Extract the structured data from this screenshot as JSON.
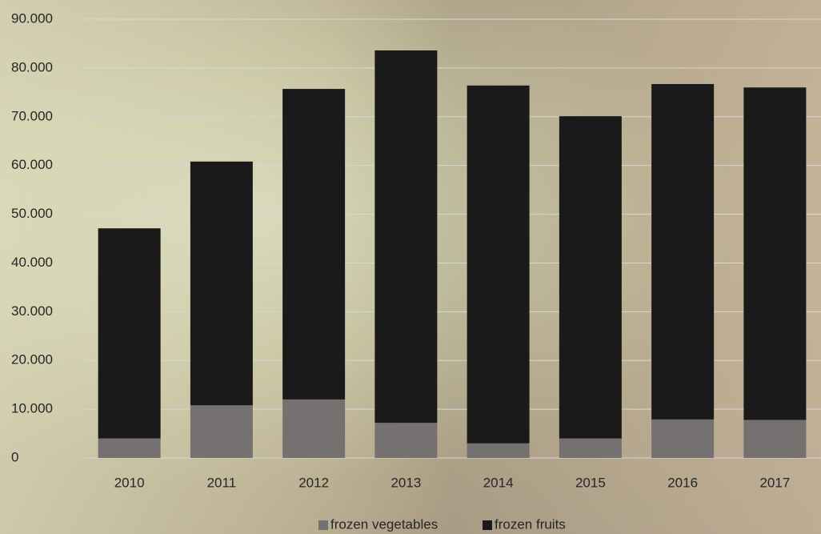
{
  "chart_data": {
    "type": "stacked-bar",
    "categories": [
      "2010",
      "2011",
      "2012",
      "2013",
      "2014",
      "2015",
      "2016",
      "2017"
    ],
    "series": [
      {
        "name": "frozen vegetables",
        "color": "#767171",
        "values": [
          4000,
          10800,
          12000,
          7200,
          3000,
          4000,
          7900,
          7800
        ]
      },
      {
        "name": "frozen fruits",
        "color": "#1a1a1a",
        "values": [
          43100,
          50000,
          63700,
          76400,
          73400,
          66100,
          68800,
          68200
        ]
      }
    ],
    "ylim": [
      0,
      90000
    ],
    "yticks": [
      0,
      {
        "value": 10000,
        "label": "10.000"
      },
      {
        "value": 20000,
        "label": "20.000"
      },
      {
        "value": 30000,
        "label": "30.000"
      },
      {
        "value": 40000,
        "label": "40.000"
      },
      {
        "value": 50000,
        "label": "50.000"
      },
      {
        "value": 60000,
        "label": "60.000"
      },
      {
        "value": 70000,
        "label": "70.000"
      },
      {
        "value": 80000,
        "label": "80.000"
      },
      {
        "value": 90000,
        "label": "90.000"
      }
    ],
    "grid": true,
    "legend": "bottom"
  }
}
